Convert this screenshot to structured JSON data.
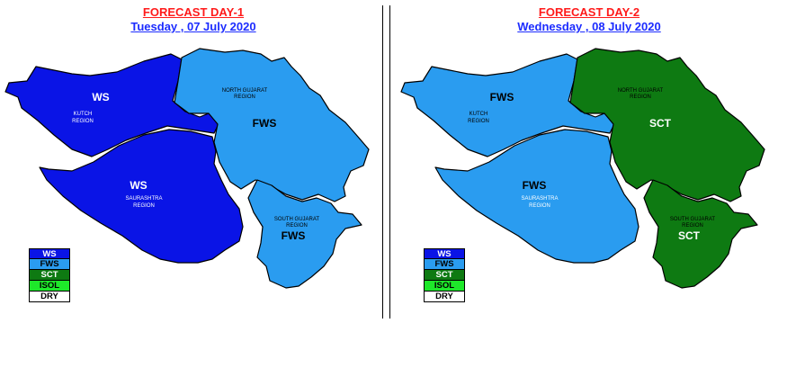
{
  "colors": {
    "WS": "#0a14e6",
    "FWS": "#2a9cf0",
    "SCT": "#0e7a12",
    "ISOL": "#1ee82a",
    "DRY": "#ffffff"
  },
  "legend": [
    {
      "code": "WS",
      "text_color": "#ffffff"
    },
    {
      "code": "FWS",
      "text_color": "#000000"
    },
    {
      "code": "SCT",
      "text_color": "#ffffff"
    },
    {
      "code": "ISOL",
      "text_color": "#000000"
    },
    {
      "code": "DRY",
      "text_color": "#000000"
    }
  ],
  "region_names": {
    "kutch": [
      "KUTCH",
      "REGION"
    ],
    "north": [
      "NORTH GUJARAT",
      "REGION"
    ],
    "saurashtra": [
      "SAURASHTRA",
      "REGION"
    ],
    "south": [
      "SOUTH GUJARAT",
      "REGION"
    ]
  },
  "day1": {
    "title": "FORECAST  DAY-1",
    "date": "Tuesday ,  07 July 2020",
    "regions": {
      "kutch": "WS",
      "north": "FWS",
      "saurashtra": "WS",
      "south": "FWS"
    }
  },
  "day2": {
    "title": "FORECAST  DAY-2",
    "date": "Wednesday ,  08 July 2020",
    "regions": {
      "kutch": "FWS",
      "north": "SCT",
      "saurashtra": "FWS",
      "south": "SCT"
    }
  }
}
